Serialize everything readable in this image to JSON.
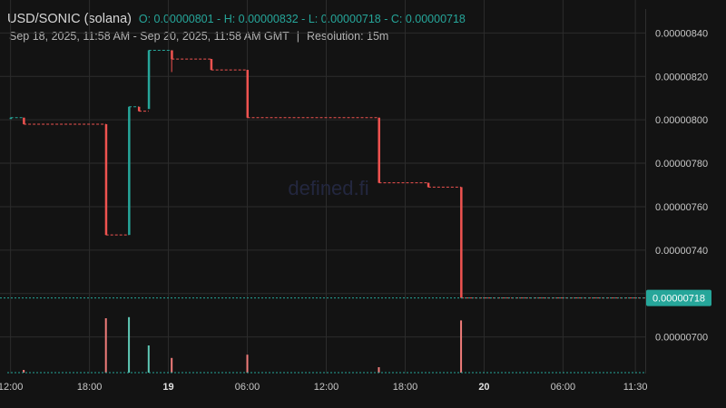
{
  "header": {
    "symbol": "USD/SONIC (solana)",
    "ohlc": "O: 0.00000801 - H: 0.00000832 - L: 0.00000718 - C: 0.00000718",
    "range": "Sep 18, 2025, 11:58 AM - Sep 20, 2025, 11:58 AM GMT",
    "separator": "|",
    "resolution": "Resolution: 15m"
  },
  "watermark": "defined.fi",
  "colors": {
    "background": "#131313",
    "grid": "#2c2c2c",
    "up": "#26a69a",
    "down": "#ef5350",
    "price_tag": "#26a69a"
  },
  "last_price_label": "0.00000718",
  "chart_data": {
    "type": "candlestick",
    "title": "USD/SONIC (solana)",
    "resolution": "15m",
    "y_ticks": [
      "0.00000840",
      "0.00000820",
      "0.00000800",
      "0.00000780",
      "0.00000760",
      "0.00000740",
      "0.00000720",
      "0.00000700"
    ],
    "x_ticks": [
      "12:00",
      "18:00",
      "19",
      "06:00",
      "12:00",
      "18:00",
      "20",
      "06:00",
      "11:30"
    ],
    "ylim": [
      6.84e-06,
      8.51e-06
    ],
    "xlim_hours": [
      11.75,
      60.25
    ],
    "candles": [
      {
        "t": 12.0,
        "o": 8.01e-06,
        "h": 8.01e-06,
        "l": 8.01e-06,
        "c": 8.01e-06
      },
      {
        "t": 13.0,
        "o": 8.01e-06,
        "h": 8.01e-06,
        "l": 7.98e-06,
        "c": 7.98e-06
      },
      {
        "t": 19.25,
        "o": 7.98e-06,
        "h": 7.98e-06,
        "l": 7.47e-06,
        "c": 7.47e-06
      },
      {
        "t": 21.0,
        "o": 7.47e-06,
        "h": 8.06e-06,
        "l": 7.47e-06,
        "c": 8.06e-06
      },
      {
        "t": 21.75,
        "o": 8.06e-06,
        "h": 8.06e-06,
        "l": 8.04e-06,
        "c": 8.04e-06
      },
      {
        "t": 22.5,
        "o": 8.05e-06,
        "h": 8.32e-06,
        "l": 8.05e-06,
        "c": 8.32e-06
      },
      {
        "t": 24.25,
        "o": 8.32e-06,
        "h": 8.32e-06,
        "l": 8.22e-06,
        "c": 8.28e-06
      },
      {
        "t": 27.25,
        "o": 8.28e-06,
        "h": 8.28e-06,
        "l": 8.23e-06,
        "c": 8.23e-06
      },
      {
        "t": 30.0,
        "o": 8.23e-06,
        "h": 8.23e-06,
        "l": 8.01e-06,
        "c": 8.01e-06
      },
      {
        "t": 40.0,
        "o": 8.01e-06,
        "h": 8.01e-06,
        "l": 7.71e-06,
        "c": 7.71e-06
      },
      {
        "t": 43.75,
        "o": 7.71e-06,
        "h": 7.71e-06,
        "l": 7.69e-06,
        "c": 7.69e-06
      },
      {
        "t": 46.25,
        "o": 7.69e-06,
        "h": 7.69e-06,
        "l": 7.18e-06,
        "c": 7.18e-06
      }
    ],
    "volume": [
      {
        "t": 13.0,
        "v": 0.05,
        "dir": "down"
      },
      {
        "t": 19.25,
        "v": 1.0,
        "dir": "down"
      },
      {
        "t": 21.0,
        "v": 1.02,
        "dir": "up"
      },
      {
        "t": 22.5,
        "v": 0.5,
        "dir": "up"
      },
      {
        "t": 24.25,
        "v": 0.27,
        "dir": "down"
      },
      {
        "t": 30.0,
        "v": 0.33,
        "dir": "down"
      },
      {
        "t": 40.0,
        "v": 0.1,
        "dir": "down"
      },
      {
        "t": 46.25,
        "v": 0.96,
        "dir": "down"
      }
    ]
  }
}
